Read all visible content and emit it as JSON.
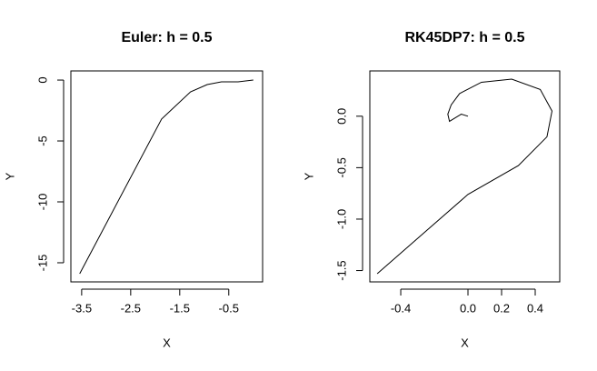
{
  "chart_data": [
    {
      "type": "line",
      "title": "Euler: h = 0.5",
      "x_label": "X",
      "y_label": "Y",
      "series": [
        {
          "name": "Y",
          "color": "#000000",
          "x": [
            0,
            -0.31,
            -0.65,
            -0.94,
            -1.28,
            -1.87,
            -3.54
          ],
          "values": [
            0,
            -0.15,
            -0.15,
            -0.37,
            -0.97,
            -3.2,
            -15.9
          ]
        }
      ],
      "xlim": [
        -3.72,
        0.19
      ],
      "xticks": [
        -3.5,
        -2.5,
        -1.5,
        -0.5
      ],
      "ylim": [
        -16.57,
        0.75
      ],
      "yticks": [
        -15,
        -10,
        -5,
        0
      ]
    },
    {
      "type": "line",
      "title": "RK45DP7: h = 0.5",
      "x_label": "X",
      "y_label": "Y",
      "series": [
        {
          "name": "Y",
          "color": "#000000",
          "x": [
            0,
            -0.04,
            -0.09,
            -0.11,
            -0.12,
            -0.1,
            -0.05,
            0.08,
            0.26,
            0.43,
            0.5,
            0.47,
            0.3,
            0,
            -0.54
          ],
          "values": [
            0,
            0.02,
            -0.03,
            -0.05,
            0.02,
            0.11,
            0.22,
            0.33,
            0.36,
            0.26,
            0.05,
            -0.2,
            -0.48,
            -0.76,
            -1.53
          ]
        }
      ],
      "xlim": [
        -0.584,
        0.546
      ],
      "xticks": [
        -0.4,
        {
          "value": 0,
          "label": "0.0"
        },
        0.2,
        0.4
      ],
      "ylim": [
        -1.61,
        0.44
      ],
      "yticks": [
        -1.5,
        {
          "value": -1,
          "label": "-1.0"
        },
        -0.5,
        {
          "value": 0,
          "label": "0.0"
        }
      ]
    }
  ]
}
